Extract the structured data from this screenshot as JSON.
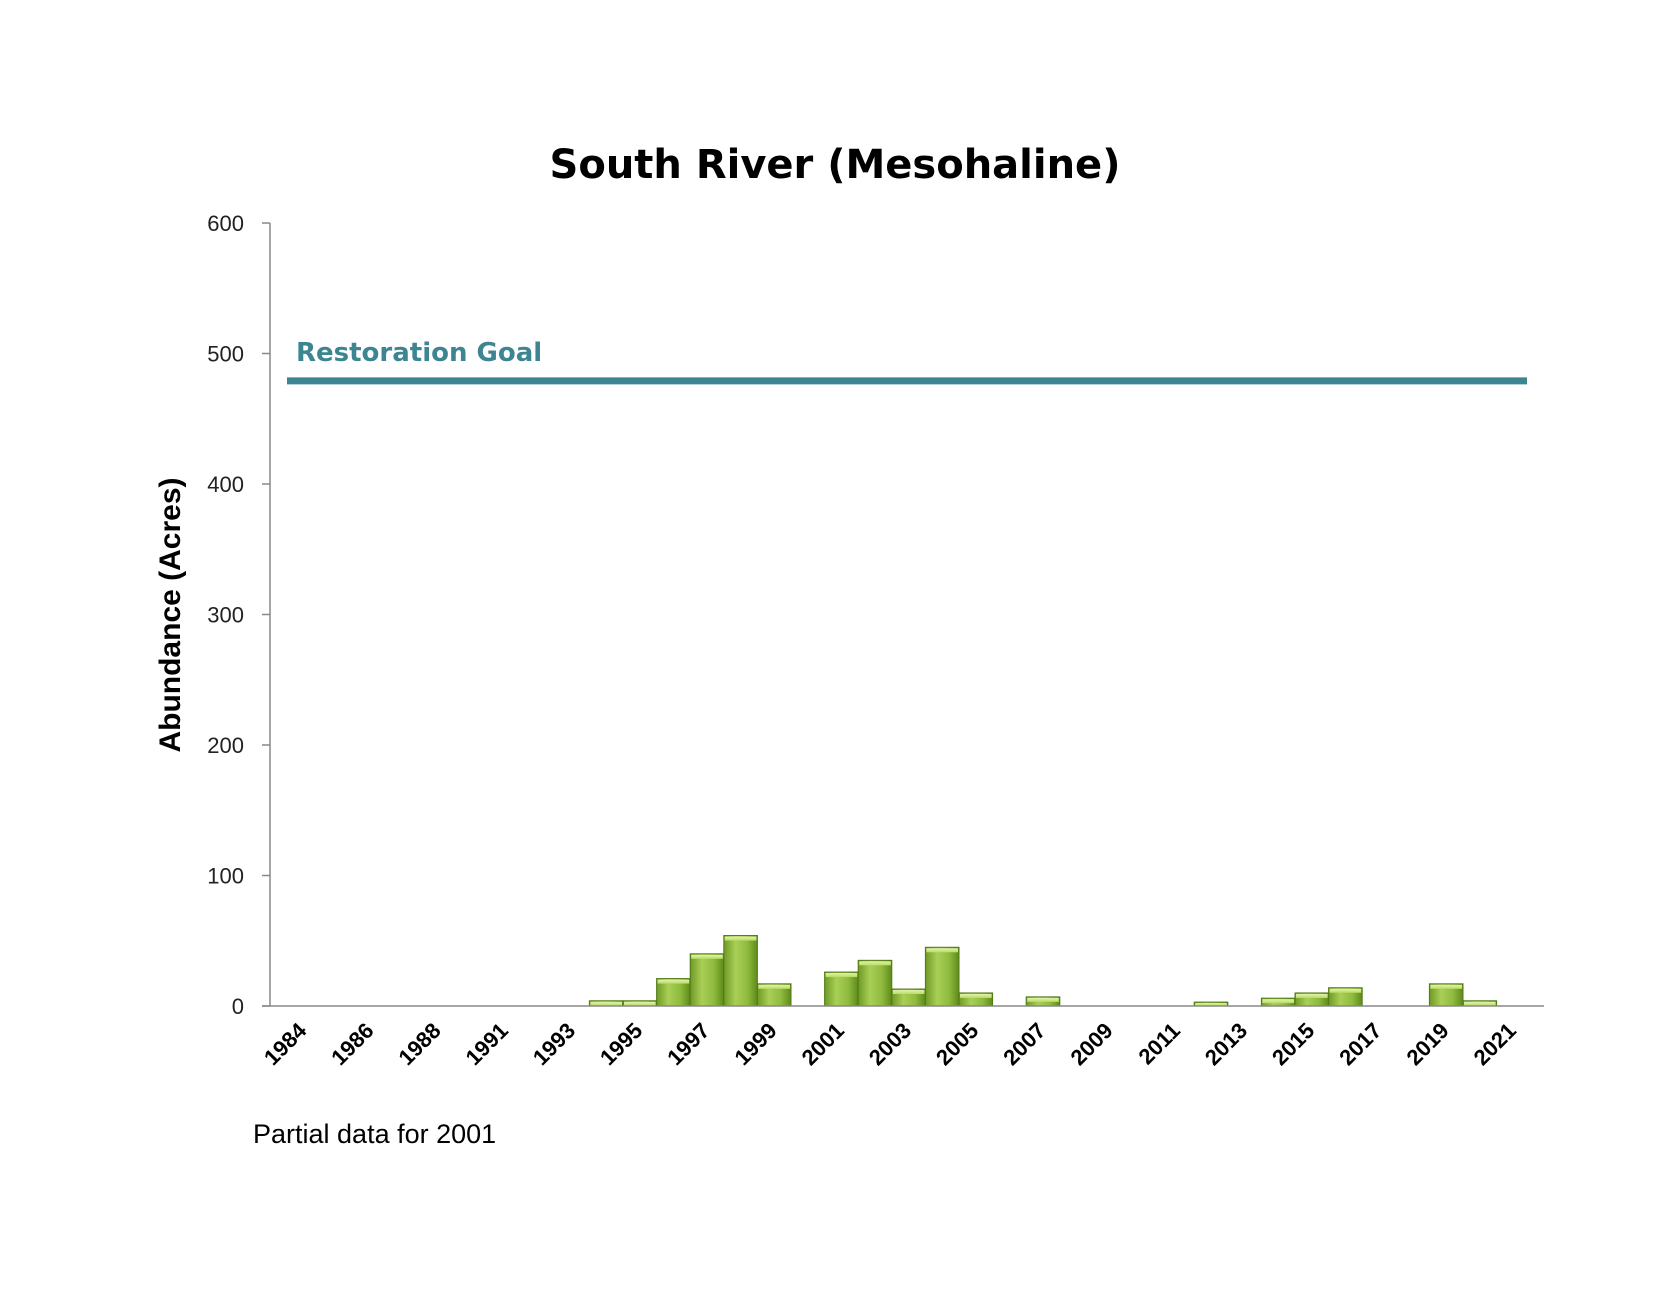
{
  "chart_data": {
    "type": "bar",
    "title": "South River (Mesohaline)",
    "xlabel": "",
    "ylabel": "Abundance (Acres)",
    "ylim": [
      0,
      600
    ],
    "yticks": [
      0,
      100,
      200,
      300,
      400,
      500,
      600
    ],
    "x_tick_labels": [
      "1984",
      "1986",
      "1988",
      "1991",
      "1993",
      "1995",
      "1997",
      "1999",
      "2001",
      "2003",
      "2005",
      "2007",
      "2009",
      "2011",
      "2013",
      "2015",
      "2017",
      "2019",
      "2021"
    ],
    "categories": [
      "1984",
      "1985",
      "1986",
      "1987",
      "1988",
      "1989",
      "1991",
      "1992",
      "1993",
      "1994",
      "1995",
      "1996",
      "1997",
      "1998",
      "1999",
      "2000",
      "2001",
      "2002",
      "2003",
      "2004",
      "2005",
      "2006",
      "2007",
      "2008",
      "2009",
      "2010",
      "2011",
      "2012",
      "2013",
      "2014",
      "2015",
      "2016",
      "2017",
      "2018",
      "2019",
      "2020",
      "2021",
      "2022"
    ],
    "values": [
      0,
      0,
      0,
      0,
      0,
      0,
      0,
      0,
      0,
      4,
      4,
      21,
      40,
      54,
      17,
      0,
      26,
      35,
      13,
      45,
      10,
      0,
      7,
      0,
      0,
      0,
      0,
      3,
      0,
      6,
      10,
      14,
      0,
      0,
      17,
      4,
      0,
      0
    ],
    "bar_color": "#8db63c",
    "goal": {
      "label": "Restoration Goal",
      "value": 479,
      "color": "#3c8591"
    },
    "grid": false,
    "legend": "none"
  },
  "footnote": "Partial data for 2001"
}
